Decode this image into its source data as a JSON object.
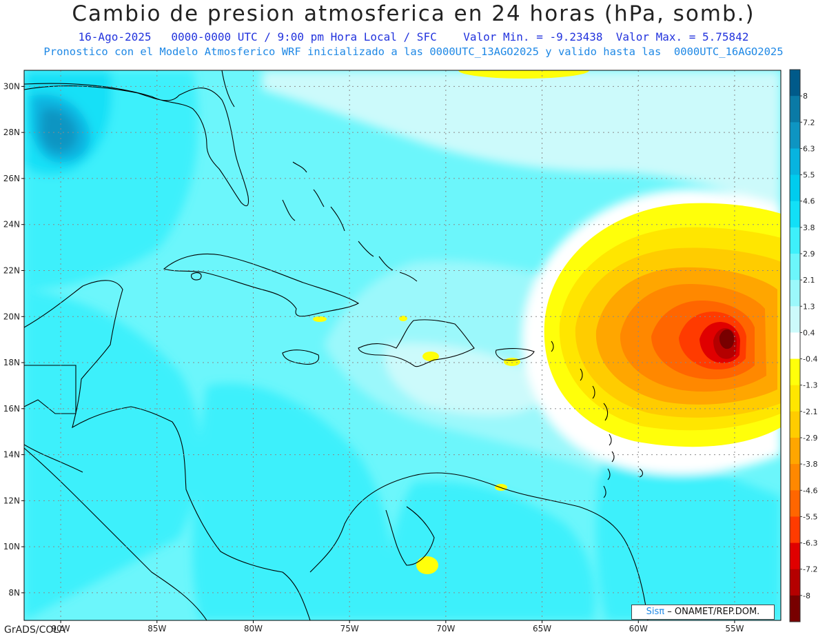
{
  "title": "Cambio de presion atmosferica en 24 horas (hPa, somb.)",
  "subtitle1": "16-Ago-2025   0000-0000 UTC / 9:00 pm Hora Local / SFC    Valor Min. = -9.23438  Valor Max. = 5.75842",
  "subtitle2": "Pronostico con el Modelo Atmosferico WRF inicializado a las 0000UTC_13AGO2025 y valido hasta las  0000UTC_16AGO2025",
  "badge": {
    "brand": "Sisπ",
    "text": "– ONAMET/REP.DOM."
  },
  "footer": "GrADS/COLA",
  "map": {
    "lat_labels": [
      "30N",
      "28N",
      "26N",
      "24N",
      "22N",
      "20N",
      "18N",
      "16N",
      "14N",
      "12N",
      "10N",
      "8N"
    ],
    "lat_values": [
      30,
      28,
      26,
      24,
      22,
      20,
      18,
      16,
      14,
      12,
      10,
      8
    ],
    "lon_labels": [
      "90W",
      "85W",
      "80W",
      "75W",
      "70W",
      "65W",
      "60W",
      "55W"
    ],
    "lon_values": [
      -90,
      -85,
      -80,
      -75,
      -70,
      -65,
      -60,
      -55
    ],
    "extent": {
      "lon_min": -91.9,
      "lon_max": -52.6,
      "lat_min": 6.8,
      "lat_max": 30.7
    },
    "min_value": -9.23438,
    "max_value": 5.75842,
    "low_center": {
      "lon": -55.1,
      "lat": 18.7
    }
  },
  "colorbar": {
    "labels": [
      "8",
      "7.2",
      "6.3",
      "5.5",
      "4.6",
      "3.8",
      "2.9",
      "2.1",
      "1.3",
      "0.4",
      "-0.4",
      "-1.3",
      "-2.1",
      "-2.9",
      "-3.8",
      "-4.6",
      "-5.5",
      "-6.3",
      "-7.2",
      "-8"
    ],
    "colors": [
      "#005a8a",
      "#0a7aa6",
      "#0e95c2",
      "#07b4e0",
      "#00ccee",
      "#12e0f7",
      "#3ef0fb",
      "#6cf6fb",
      "#9bf8fb",
      "#ccfafb",
      "#ffffff",
      "#ffff0a",
      "#ffe600",
      "#ffcc00",
      "#ffa600",
      "#ff8800",
      "#ff6600",
      "#ff3b00",
      "#e00000",
      "#b40000",
      "#780000"
    ]
  }
}
